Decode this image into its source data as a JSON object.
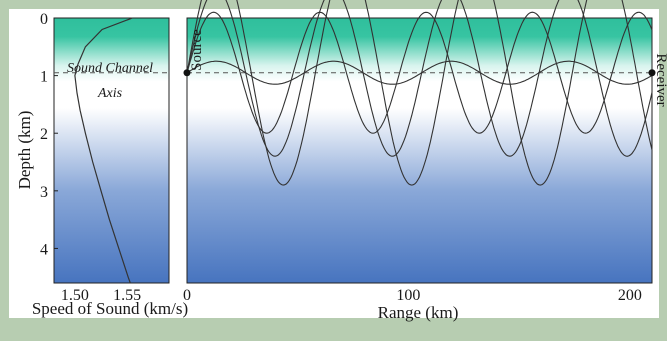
{
  "left_panel": {
    "ylabel": "Depth (km)",
    "xlabel": "Speed of Sound (km/s)",
    "y_ticks": [
      "0",
      "1",
      "2",
      "3",
      "4"
    ],
    "x_ticks": [
      "1.50",
      "1.55"
    ],
    "annotation_line1": "Sound Channel",
    "annotation_line2": "Axis"
  },
  "right_panel": {
    "xlabel": "Range (km)",
    "x_ticks": [
      "0",
      "100",
      "200"
    ],
    "source_label": "Source",
    "receiver_label": "Receiver"
  },
  "colors": {
    "frame_background": "#b7cdb1",
    "surface_green": "#2fbf9c",
    "mid_white": "#ffffff",
    "deep_blue": "#4774bf",
    "ray_color": "#333333"
  },
  "chart_data": [
    {
      "type": "line",
      "series": [
        {
          "depth_km": [
            0.0,
            0.2,
            0.5,
            0.8,
            1.0,
            1.3,
            1.6,
            2.0,
            2.5,
            3.0,
            3.5,
            4.0,
            4.5,
            4.6
          ],
          "speed_kms": [
            1.555,
            1.526,
            1.51,
            1.503,
            1.5,
            1.502,
            1.505,
            1.51,
            1.517,
            1.525,
            1.533,
            1.542,
            1.551,
            1.553
          ]
        }
      ],
      "xlim": [
        1.48,
        1.59
      ],
      "ylim": [
        4.6,
        0.0
      ],
      "channel_axis_depth_km": 0.95
    },
    {
      "type": "line",
      "xlim": [
        0,
        210
      ],
      "ylim": [
        4.6,
        0.0
      ],
      "channel_axis_depth_km": 0.95,
      "source": {
        "range_km": 0,
        "depth_km": 0.95
      },
      "receiver": {
        "range_km": 210,
        "depth_km": 0.95
      },
      "rays": [
        {
          "amplitude_km": 0.2,
          "cycle_km": 53
        },
        {
          "amplitude_km": 1.05,
          "cycle_km": 48
        },
        {
          "amplitude_km": 1.45,
          "cycle_km": 53
        },
        {
          "amplitude_km": 1.95,
          "cycle_km": 58
        }
      ]
    }
  ]
}
